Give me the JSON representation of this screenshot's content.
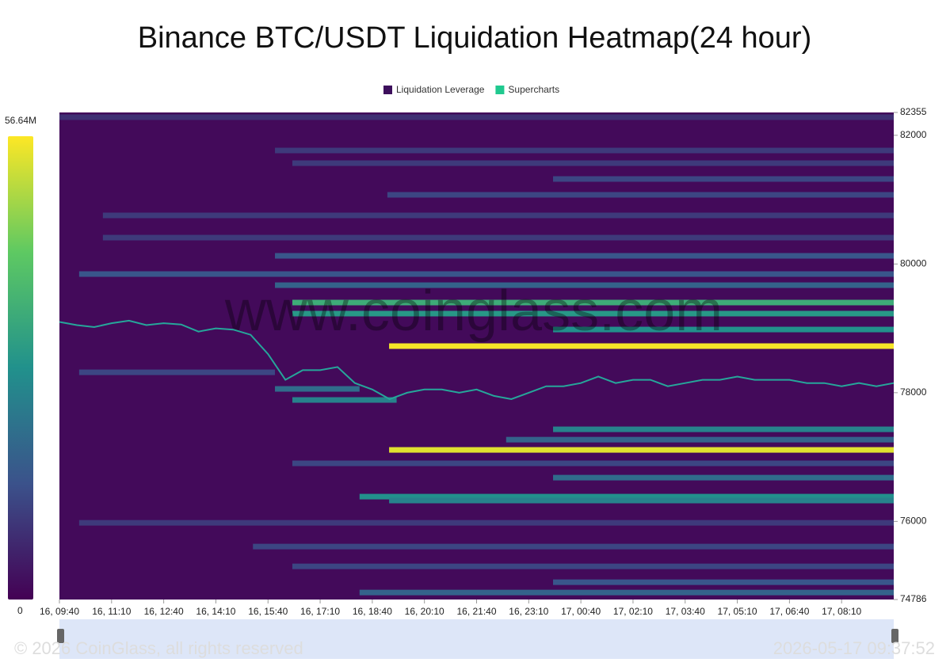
{
  "chart_data": {
    "type": "heatmap",
    "title": "Binance BTC/USDT Liquidation Heatmap(24 hour)",
    "legend": [
      {
        "name": "Liquidation Leverage",
        "color": "#3d0f5c"
      },
      {
        "name": "Supercharts",
        "color": "#20c98f"
      }
    ],
    "watermark": "www.coinglass.com",
    "copyright": "© 2026 CoinGlass, all rights reserved",
    "timestamp": "2026-05-17 09:37:52",
    "xlim": [
      0,
      1440
    ],
    "xticks": [
      {
        "value": 0,
        "label": "16, 09:40"
      },
      {
        "value": 90,
        "label": "16, 11:10"
      },
      {
        "value": 180,
        "label": "16, 12:40"
      },
      {
        "value": 270,
        "label": "16, 14:10"
      },
      {
        "value": 360,
        "label": "16, 15:40"
      },
      {
        "value": 450,
        "label": "16, 17:10"
      },
      {
        "value": 540,
        "label": "16, 18:40"
      },
      {
        "value": 630,
        "label": "16, 20:10"
      },
      {
        "value": 720,
        "label": "16, 21:40"
      },
      {
        "value": 810,
        "label": "16, 23:10"
      },
      {
        "value": 900,
        "label": "17, 00:40"
      },
      {
        "value": 990,
        "label": "17, 02:10"
      },
      {
        "value": 1080,
        "label": "17, 03:40"
      },
      {
        "value": 1170,
        "label": "17, 05:10"
      },
      {
        "value": 1260,
        "label": "17, 06:40"
      },
      {
        "value": 1350,
        "label": "17, 08:10"
      }
    ],
    "ylim": [
      74786,
      82355
    ],
    "yticks": [
      74786,
      76000,
      78000,
      80000,
      82000,
      82355
    ],
    "colorscale": [
      "#440154",
      "#3b528b",
      "#21918c",
      "#5ec962",
      "#fde725"
    ],
    "clim": [
      0,
      56640000
    ],
    "cticks": [
      0,
      {
        "value": 56640000,
        "label": "56.64M"
      }
    ],
    "background_value": 1500000,
    "bands": [
      {
        "price": 82281,
        "start": 0,
        "end": 1440,
        "value": 8000000
      },
      {
        "price": 81764,
        "start": 372,
        "end": 1440,
        "value": 10000000
      },
      {
        "price": 81567,
        "start": 402,
        "end": 1440,
        "value": 10000000
      },
      {
        "price": 81321,
        "start": 852,
        "end": 1440,
        "value": 12000000
      },
      {
        "price": 81075,
        "start": 566,
        "end": 1440,
        "value": 12000000
      },
      {
        "price": 80755,
        "start": 75,
        "end": 1440,
        "value": 10000000
      },
      {
        "price": 80410,
        "start": 75,
        "end": 1440,
        "value": 10000000
      },
      {
        "price": 80127,
        "start": 372,
        "end": 1440,
        "value": 15000000
      },
      {
        "price": 79844,
        "start": 34,
        "end": 1440,
        "value": 15000000
      },
      {
        "price": 79671,
        "start": 372,
        "end": 1440,
        "value": 18000000
      },
      {
        "price": 79401,
        "start": 402,
        "end": 1440,
        "value": 35000000
      },
      {
        "price": 79229,
        "start": 402,
        "end": 1440,
        "value": 30000000
      },
      {
        "price": 78982,
        "start": 852,
        "end": 1440,
        "value": 28000000
      },
      {
        "price": 78724,
        "start": 569,
        "end": 1440,
        "value": 56000000
      },
      {
        "price": 78317,
        "start": 34,
        "end": 372,
        "value": 12000000
      },
      {
        "price": 78059,
        "start": 372,
        "end": 518,
        "value": 20000000
      },
      {
        "price": 77887,
        "start": 402,
        "end": 582,
        "value": 25000000
      },
      {
        "price": 77431,
        "start": 852,
        "end": 1440,
        "value": 25000000
      },
      {
        "price": 77270,
        "start": 771,
        "end": 1440,
        "value": 18000000
      },
      {
        "price": 77111,
        "start": 569,
        "end": 1440,
        "value": 54000000
      },
      {
        "price": 76902,
        "start": 402,
        "end": 1440,
        "value": 12000000
      },
      {
        "price": 76680,
        "start": 852,
        "end": 1440,
        "value": 20000000
      },
      {
        "price": 76385,
        "start": 518,
        "end": 1440,
        "value": 28000000
      },
      {
        "price": 76324,
        "start": 569,
        "end": 1440,
        "value": 25000000
      },
      {
        "price": 75978,
        "start": 34,
        "end": 1440,
        "value": 10000000
      },
      {
        "price": 75609,
        "start": 334,
        "end": 1440,
        "value": 12000000
      },
      {
        "price": 75301,
        "start": 402,
        "end": 1440,
        "value": 12000000
      },
      {
        "price": 75055,
        "start": 852,
        "end": 1440,
        "value": 15000000
      },
      {
        "price": 74895,
        "start": 518,
        "end": 1440,
        "value": 18000000
      }
    ],
    "price": {
      "color": "#26a69a",
      "x": [
        0,
        30,
        60,
        90,
        120,
        150,
        180,
        210,
        240,
        270,
        300,
        330,
        360,
        390,
        420,
        450,
        480,
        510,
        540,
        570,
        600,
        630,
        660,
        690,
        720,
        750,
        780,
        810,
        840,
        870,
        900,
        930,
        960,
        990,
        1020,
        1050,
        1080,
        1110,
        1140,
        1170,
        1200,
        1230,
        1260,
        1290,
        1320,
        1350,
        1380,
        1410,
        1440
      ],
      "values": [
        79100,
        79050,
        79020,
        79080,
        79120,
        79050,
        79080,
        79060,
        78950,
        79000,
        78980,
        78900,
        78600,
        78200,
        78350,
        78350,
        78400,
        78150,
        78050,
        77900,
        78000,
        78050,
        78050,
        78000,
        78050,
        77950,
        77900,
        78000,
        78100,
        78100,
        78150,
        78250,
        78150,
        78200,
        78200,
        78100,
        78150,
        78200,
        78200,
        78250,
        78200,
        78200,
        78200,
        78150,
        78150,
        78100,
        78150,
        78100,
        78150
      ]
    }
  }
}
